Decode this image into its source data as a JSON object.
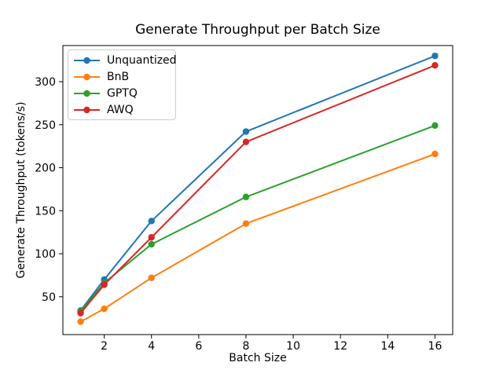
{
  "chart_data": {
    "type": "line",
    "title": "Generate Throughput per Batch Size",
    "xlabel": "Batch Size",
    "ylabel": "Generate Throughput (tokens/s)",
    "x": [
      1,
      2,
      4,
      8,
      16
    ],
    "series": [
      {
        "name": "Unquantized",
        "color": "#1f77b4",
        "values": [
          34,
          70,
          138,
          242,
          330
        ]
      },
      {
        "name": "BnB",
        "color": "#ff7f0e",
        "values": [
          21,
          36,
          72,
          135,
          216
        ]
      },
      {
        "name": "GPTQ",
        "color": "#2ca02c",
        "values": [
          33,
          66,
          111,
          166,
          249
        ]
      },
      {
        "name": "AWQ",
        "color": "#d62728",
        "values": [
          31,
          64,
          119,
          230,
          319
        ]
      }
    ],
    "xticks": [
      2,
      4,
      6,
      8,
      10,
      12,
      14,
      16
    ],
    "yticks": [
      50,
      100,
      150,
      200,
      250,
      300
    ],
    "xlim": [
      0.25,
      16.75
    ],
    "ylim": [
      6,
      342
    ],
    "grid": false,
    "legend_position": "upper left",
    "marker": "circle",
    "background": "#ffffff",
    "axis_color": "#000000"
  }
}
